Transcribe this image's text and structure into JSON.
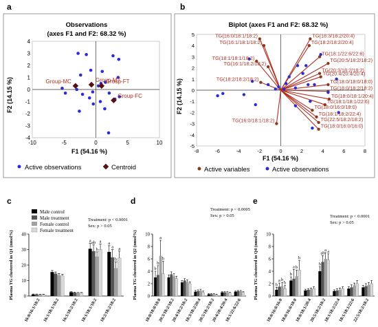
{
  "panel_labels": {
    "a": "a",
    "b": "b",
    "c": "c",
    "d": "d",
    "e": "e"
  },
  "colors": {
    "active_obs": "#2b2bd9",
    "centroid": "#5a0f0f",
    "active_var": "#8b3a1e",
    "arrow": "#b03020",
    "label_text": "#b03020",
    "male_control": "#000000",
    "male_treatment": "#555555",
    "female_control": "#a0a0a0",
    "female_treatment": "#d8d8d8"
  },
  "chart_data": [
    {
      "id": "a",
      "type": "scatter",
      "title": "Observations",
      "subtitle": "(axes F1 and F2: 68.32 %)",
      "xlabel": "F1 (54.16 %)",
      "ylabel": "F2 (14.15 %)",
      "xlim": [
        -10,
        10
      ],
      "ylim": [
        -4,
        4
      ],
      "xticks": [
        -10,
        -5,
        0,
        5,
        10
      ],
      "yticks": [
        -4,
        -3,
        -2,
        -1,
        0,
        1,
        2,
        3,
        4
      ],
      "legend": [
        "Active observations",
        "Centroid"
      ],
      "legend_placement": "bottom",
      "active_observations": [
        [
          -2.8,
          3.0
        ],
        [
          -1.5,
          2.9
        ],
        [
          -0.8,
          1.6
        ],
        [
          -2.4,
          1.2
        ],
        [
          2.7,
          2.8
        ],
        [
          3.6,
          2.5
        ],
        [
          1.0,
          1.5
        ],
        [
          1.5,
          0.6
        ],
        [
          3.5,
          1.0
        ],
        [
          -4.8,
          -0.3
        ],
        [
          -5.3,
          0.1
        ],
        [
          -3.0,
          0.0
        ],
        [
          -2.1,
          -0.4
        ],
        [
          -0.5,
          -0.2
        ],
        [
          0.4,
          0.3
        ],
        [
          0.8,
          0.5
        ],
        [
          2.1,
          -0.3
        ],
        [
          3.0,
          -0.8
        ],
        [
          3.7,
          -0.6
        ],
        [
          -2.6,
          -1.8
        ],
        [
          -0.4,
          -1.2
        ],
        [
          0.7,
          -1.0
        ],
        [
          1.4,
          -1.6
        ],
        [
          2.0,
          -3.6
        ],
        [
          -1.0,
          -0.7
        ]
      ],
      "centroids": [
        {
          "label": "Group-MC",
          "x": -3.2,
          "y": 0.3
        },
        {
          "label": "Group-MT",
          "x": -0.7,
          "y": 0.4
        },
        {
          "label": "Group-FT",
          "x": 0.9,
          "y": 0.3
        },
        {
          "label": "Group-FC",
          "x": 2.8,
          "y": -0.9
        }
      ]
    },
    {
      "id": "b",
      "type": "scatter",
      "title": "Biplot (axes F1 and F2: 68.32 %)",
      "xlabel": "F1 (54.16 %)",
      "ylabel": "F2 (14.15 %)",
      "xlim": [
        -8,
        8
      ],
      "ylim": [
        -5,
        5
      ],
      "xticks": [
        -8,
        -6,
        -4,
        -2,
        0,
        2,
        4,
        6,
        8
      ],
      "yticks": [
        -5,
        -4,
        -3,
        -2,
        -1,
        0,
        1,
        2,
        3,
        4,
        5
      ],
      "legend": [
        "Active variables",
        "Active observations"
      ],
      "legend_placement": "bottom",
      "variables": [
        {
          "label": "TG(16:0/18:1/18:2)",
          "x": -2.0,
          "y": 4.6
        },
        {
          "label": "TG(16:1/18:1/18:2)",
          "x": -1.6,
          "y": 4.0
        },
        {
          "label": "TG(18:1/18:1/18:2)",
          "x": -2.3,
          "y": 2.6
        },
        {
          "label": "TG(16:1/18:2/18:2)",
          "x": -1.2,
          "y": 2.1
        },
        {
          "label": "TG(18:2/18:2/18:2)",
          "x": -1.9,
          "y": 0.7
        },
        {
          "label": "TG(16:0/18:1/18:2)",
          "x": -0.4,
          "y": -3.0
        },
        {
          "label": "TG(18:3/18:2/20:4)",
          "x": 2.8,
          "y": 4.6
        },
        {
          "label": "TG(18:2/18:2/20:4)",
          "x": 2.7,
          "y": 4.0
        },
        {
          "label": "TG(18:1/22:6/22:6)",
          "x": 3.7,
          "y": 3.0
        },
        {
          "label": "TG(20:5/18:2/18:2)",
          "x": 4.5,
          "y": 2.4
        },
        {
          "label": "TG(20:3/18:2/18:2)",
          "x": 3.7,
          "y": 1.5
        },
        {
          "label": "TG(20:4/20:4/20:4)",
          "x": 3.8,
          "y": 1.2
        },
        {
          "label": "TG(18:0/18:0/18:0)",
          "x": 4.5,
          "y": 0.5
        },
        {
          "label": "TG(18:0/18:2/18:2)",
          "x": 4.5,
          "y": -0.1
        },
        {
          "label": "TG(18:0/18:1/20:4)",
          "x": 4.6,
          "y": -0.8
        },
        {
          "label": "TG(18:1/18:1/22:6)",
          "x": 4.2,
          "y": -1.3
        },
        {
          "label": "TG(18:0/16:0/18:0)",
          "x": 3.0,
          "y": -1.8
        },
        {
          "label": "TG(18:1/18:2/22:4)",
          "x": 3.4,
          "y": -2.4
        },
        {
          "label": "TG(22:5/18:2/18:2)",
          "x": 3.6,
          "y": -2.9
        },
        {
          "label": "TG(18:0/16:0/16:0)",
          "x": 3.6,
          "y": -3.5
        }
      ],
      "active_observations": [
        [
          -5.5,
          -0.3
        ],
        [
          -6.0,
          -0.5
        ],
        [
          -3.0,
          2.8
        ],
        [
          -2.7,
          0.8
        ],
        [
          -3.5,
          -0.4
        ],
        [
          -2.4,
          -1.3
        ],
        [
          -1.2,
          0.5
        ],
        [
          -0.5,
          0.1
        ],
        [
          0.3,
          0.1
        ],
        [
          0.5,
          0.6
        ],
        [
          1.4,
          0.2
        ],
        [
          0.8,
          1.2
        ],
        [
          1.6,
          2.2
        ],
        [
          2.1,
          1.5
        ],
        [
          2.4,
          2.2
        ],
        [
          2.6,
          0.5
        ],
        [
          3.2,
          0.5
        ],
        [
          3.8,
          3.2
        ],
        [
          5.3,
          1.0
        ],
        [
          4.5,
          -0.2
        ],
        [
          2.8,
          -1.0
        ],
        [
          3.0,
          -3.4
        ],
        [
          1.4,
          -1.4
        ],
        [
          5.5,
          -2.0
        ],
        [
          -0.2,
          0.3
        ]
      ]
    },
    {
      "id": "c",
      "type": "bar",
      "ylabel": "Plasma TG clustered in Q1 (nmol%)",
      "ylim": [
        0,
        40
      ],
      "yticks": [
        0,
        10,
        20,
        30,
        40
      ],
      "legend": [
        "Male control",
        "Male treatment",
        "Female control",
        "Female treatment"
      ],
      "categories": [
        "16:0/16:1/18:2",
        "16:1/18:1/18:2",
        "16:1/18:2/18:2",
        "18:1/18:1/18:2",
        "18:2/18:2/18:2"
      ],
      "series": [
        {
          "name": "Male control",
          "values": [
            1.0,
            15.5,
            2.5,
            30.5,
            28.5
          ],
          "errors": [
            0.3,
            1.0,
            0.3,
            3.5,
            4.0
          ]
        },
        {
          "name": "Male treatment",
          "values": [
            1.0,
            14.5,
            2.2,
            29.0,
            25.0
          ],
          "errors": [
            0.3,
            1.0,
            0.3,
            4.0,
            5.0
          ]
        },
        {
          "name": "Female control",
          "values": [
            0.9,
            13.5,
            2.0,
            25.5,
            18.0
          ],
          "errors": [
            0.3,
            1.0,
            0.3,
            3.0,
            4.0
          ]
        },
        {
          "name": "Female treatment",
          "values": [
            0.9,
            13.0,
            2.0,
            30.0,
            24.5
          ],
          "errors": [
            0.3,
            1.0,
            0.3,
            3.5,
            4.5
          ]
        }
      ],
      "significance": [
        [
          "",
          "",
          "",
          ""
        ],
        [
          "",
          "",
          "",
          ""
        ],
        [
          "",
          "",
          "",
          ""
        ],
        [
          "a",
          "ab",
          "b",
          "a"
        ],
        [
          "a",
          "a",
          "b",
          "a"
        ]
      ],
      "annotations": [
        "Treatment: p < 0.0001",
        "Sex: p > 0.05"
      ]
    },
    {
      "id": "d",
      "type": "bar",
      "ylabel": "Plasma TG clustered in Q2 (nmol%)",
      "ylim": [
        0,
        10
      ],
      "yticks": [
        0,
        2,
        4,
        6,
        8,
        10
      ],
      "legend": [
        "Male control",
        "Male treatment",
        "Female control",
        "Female treatment"
      ],
      "categories": [
        "18:0/18:0/18:0",
        "20:3/18:2/18:2",
        "20:4/18:2/18:2",
        "18:3/18:2/20:4",
        "20:5/18:2/18:2",
        "20:4/20:4/20:4",
        "18:1/22:6/22:6"
      ],
      "series": [
        {
          "name": "Male control",
          "values": [
            3.0,
            3.0,
            2.2,
            0.7,
            0.3,
            0.6,
            0.7
          ],
          "errors": [
            1.0,
            0.4,
            0.3,
            0.2,
            0.1,
            0.1,
            0.1
          ]
        },
        {
          "name": "Male treatment",
          "values": [
            3.4,
            3.5,
            2.5,
            0.8,
            0.3,
            0.6,
            0.8
          ],
          "errors": [
            1.5,
            0.4,
            0.3,
            0.2,
            0.1,
            0.1,
            0.1
          ]
        },
        {
          "name": "Female control",
          "values": [
            6.5,
            3.2,
            2.3,
            0.9,
            0.3,
            0.6,
            0.8
          ],
          "errors": [
            2.5,
            0.4,
            0.3,
            0.2,
            0.1,
            0.1,
            0.1
          ]
        },
        {
          "name": "Female treatment",
          "values": [
            3.6,
            2.8,
            2.0,
            0.6,
            0.2,
            0.5,
            0.6
          ],
          "errors": [
            2.0,
            0.4,
            0.3,
            0.2,
            0.1,
            0.1,
            0.1
          ]
        }
      ],
      "significance": [
        [
          "b",
          "b",
          "a",
          "b"
        ],
        [
          "",
          "",
          "",
          ""
        ],
        [
          "",
          "",
          "",
          ""
        ],
        [
          "",
          "",
          "",
          ""
        ],
        [
          "",
          "",
          "",
          ""
        ],
        [
          "",
          "",
          "",
          ""
        ],
        [
          "",
          "",
          "",
          ""
        ]
      ],
      "annotations": [
        "Treatment: p < 0.0005",
        "Sex: p > 0.05"
      ]
    },
    {
      "id": "e",
      "type": "bar",
      "ylabel": "Plasma TG clustered in Q4 (nmol%)",
      "ylim": [
        0,
        10
      ],
      "yticks": [
        0,
        2,
        4,
        6,
        8,
        10
      ],
      "legend": [
        "Male control",
        "Male treatment",
        "Female control",
        "Female treatment"
      ],
      "categories": [
        "18:0/16:0/16:0",
        "18:0/16:0/18:0",
        "18:0/18:1/20:4",
        "20:5/18:2/18:2",
        "18:1/18:2/22:4",
        "18:1/18:1/22:6",
        "22:5/18:2/18:2"
      ],
      "series": [
        {
          "name": "Male control",
          "values": [
            1.0,
            2.5,
            0.9,
            4.0,
            0.8,
            1.2,
            1.4
          ],
          "errors": [
            0.4,
            0.6,
            0.2,
            0.7,
            0.2,
            0.3,
            0.3
          ]
        },
        {
          "name": "Male treatment",
          "values": [
            1.5,
            2.8,
            1.0,
            5.5,
            0.9,
            1.4,
            1.6
          ],
          "errors": [
            0.6,
            1.5,
            0.2,
            1.0,
            0.3,
            0.4,
            0.4
          ]
        },
        {
          "name": "Female control",
          "values": [
            1.6,
            3.2,
            1.1,
            6.0,
            1.0,
            1.7,
            1.8
          ],
          "errors": [
            0.6,
            1.0,
            0.2,
            1.0,
            0.3,
            0.4,
            0.4
          ]
        },
        {
          "name": "Female treatment",
          "values": [
            1.2,
            4.2,
            1.2,
            5.8,
            1.2,
            2.0,
            2.0
          ],
          "errors": [
            0.5,
            1.5,
            0.3,
            1.0,
            0.3,
            0.5,
            0.5
          ]
        }
      ],
      "significance": [
        [
          "b",
          "a",
          "b",
          "b"
        ],
        [
          "b",
          "a",
          "b",
          "b"
        ],
        [
          "",
          "",
          "",
          ""
        ],
        [
          "b",
          "ab",
          "a",
          "a"
        ],
        [
          "",
          "",
          "",
          ""
        ],
        [
          "",
          "",
          "",
          ""
        ],
        [
          "",
          "",
          "",
          ""
        ]
      ],
      "annotations": [
        "Treatment: p < 0.0001",
        "Sex: p > 0.05"
      ]
    }
  ]
}
